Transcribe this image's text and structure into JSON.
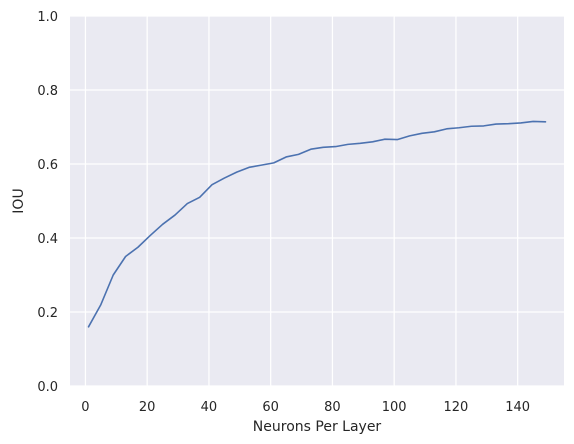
{
  "chart_data": {
    "type": "line",
    "title": "",
    "xlabel": "Neurons Per Layer",
    "ylabel": "IOU",
    "xlim": [
      -5,
      155
    ],
    "ylim": [
      0.0,
      1.0
    ],
    "x_ticks": [
      0,
      20,
      40,
      60,
      80,
      100,
      120,
      140
    ],
    "y_ticks": [
      0.0,
      0.2,
      0.4,
      0.6,
      0.8,
      1.0
    ],
    "x_tick_labels": [
      "0",
      "20",
      "40",
      "60",
      "80",
      "100",
      "120",
      "140"
    ],
    "y_tick_labels": [
      "0.0",
      "0.2",
      "0.4",
      "0.6",
      "0.8",
      "1.0"
    ],
    "grid": true,
    "background": "#eaeaf2",
    "grid_color": "#ffffff",
    "series": [
      {
        "color": "#4c72b0",
        "x": [
          1,
          5,
          9,
          13,
          17,
          21,
          25,
          29,
          33,
          37,
          41,
          45,
          49,
          53,
          57,
          61,
          65,
          69,
          73,
          77,
          81,
          85,
          89,
          93,
          97,
          101,
          105,
          109,
          113,
          117,
          121,
          125,
          129,
          133,
          137,
          141,
          145,
          149
        ],
        "y": [
          0.16,
          0.22,
          0.3,
          0.35,
          0.375,
          0.407,
          0.437,
          0.462,
          0.493,
          0.51,
          0.544,
          0.562,
          0.578,
          0.591,
          0.597,
          0.603,
          0.619,
          0.626,
          0.64,
          0.645,
          0.647,
          0.653,
          0.656,
          0.66,
          0.667,
          0.666,
          0.676,
          0.683,
          0.687,
          0.695,
          0.698,
          0.702,
          0.703,
          0.708,
          0.709,
          0.711,
          0.715,
          0.714
        ]
      }
    ]
  }
}
